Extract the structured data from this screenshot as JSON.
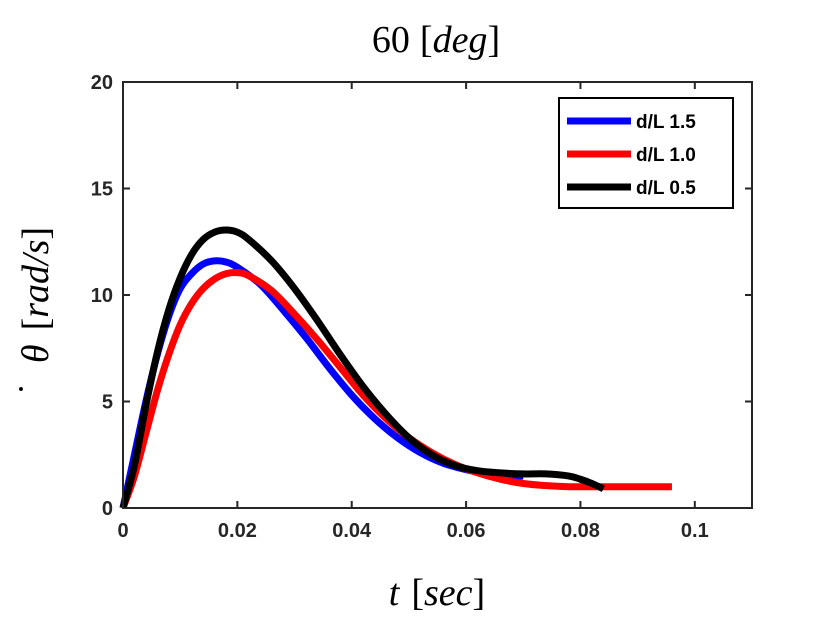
{
  "chart_data": {
    "type": "line",
    "title": {
      "number": "60",
      "unit": "deg"
    },
    "xlabel": {
      "symbol": "t",
      "unit": "sec"
    },
    "ylabel": {
      "symbol": "θ",
      "dot": "˙",
      "unit": "rad/s"
    },
    "xlim": [
      0,
      0.11
    ],
    "ylim": [
      0,
      20
    ],
    "xticks": [
      {
        "value": 0,
        "label": "0"
      },
      {
        "value": 0.02,
        "label": "0.02"
      },
      {
        "value": 0.04,
        "label": "0.04"
      },
      {
        "value": 0.06,
        "label": "0.06"
      },
      {
        "value": 0.08,
        "label": "0.08"
      },
      {
        "value": 0.1,
        "label": "0.1"
      }
    ],
    "yticks": [
      {
        "value": 0,
        "label": "0"
      },
      {
        "value": 5,
        "label": "5"
      },
      {
        "value": 10,
        "label": "10"
      },
      {
        "value": 15,
        "label": "15"
      },
      {
        "value": 20,
        "label": "20"
      }
    ],
    "grid": false,
    "legend_position": "top-right",
    "series": [
      {
        "name": "d/L 1.5",
        "color": "#0000ff",
        "x": [
          0,
          0.002,
          0.004,
          0.006,
          0.008,
          0.01,
          0.012,
          0.014,
          0.016,
          0.018,
          0.02,
          0.024,
          0.028,
          0.032,
          0.036,
          0.04,
          0.044,
          0.048,
          0.052,
          0.056,
          0.06,
          0.064,
          0.068,
          0.07
        ],
        "y": [
          0,
          2.5,
          5.0,
          7.2,
          9.0,
          10.3,
          11.0,
          11.45,
          11.6,
          11.55,
          11.3,
          10.5,
          9.3,
          8.0,
          6.6,
          5.3,
          4.2,
          3.3,
          2.6,
          2.1,
          1.8,
          1.6,
          1.5,
          1.5
        ]
      },
      {
        "name": "d/L 1.0",
        "color": "#ff0000",
        "x": [
          0,
          0.002,
          0.004,
          0.006,
          0.008,
          0.01,
          0.012,
          0.014,
          0.016,
          0.018,
          0.02,
          0.022,
          0.026,
          0.03,
          0.034,
          0.038,
          0.042,
          0.046,
          0.05,
          0.054,
          0.058,
          0.062,
          0.066,
          0.07,
          0.074,
          0.078,
          0.082,
          0.086,
          0.09,
          0.096
        ],
        "y": [
          0,
          1.5,
          3.5,
          5.5,
          7.2,
          8.6,
          9.6,
          10.3,
          10.75,
          11.0,
          11.05,
          10.9,
          10.2,
          9.1,
          7.9,
          6.6,
          5.3,
          4.2,
          3.3,
          2.6,
          2.05,
          1.65,
          1.35,
          1.15,
          1.05,
          1.0,
          1.0,
          1.0,
          1.0,
          1.0
        ]
      },
      {
        "name": "d/L 0.5",
        "color": "#000000",
        "x": [
          0,
          0.002,
          0.004,
          0.006,
          0.008,
          0.01,
          0.012,
          0.014,
          0.016,
          0.018,
          0.02,
          0.022,
          0.026,
          0.03,
          0.034,
          0.038,
          0.042,
          0.046,
          0.05,
          0.054,
          0.058,
          0.062,
          0.066,
          0.07,
          0.074,
          0.078,
          0.08,
          0.082,
          0.084
        ],
        "y": [
          0,
          2.0,
          4.8,
          7.3,
          9.3,
          10.8,
          11.9,
          12.6,
          12.95,
          13.05,
          12.95,
          12.6,
          11.6,
          10.3,
          8.8,
          7.2,
          5.7,
          4.4,
          3.3,
          2.5,
          2.0,
          1.75,
          1.65,
          1.6,
          1.6,
          1.5,
          1.35,
          1.15,
          0.9
        ]
      }
    ]
  }
}
